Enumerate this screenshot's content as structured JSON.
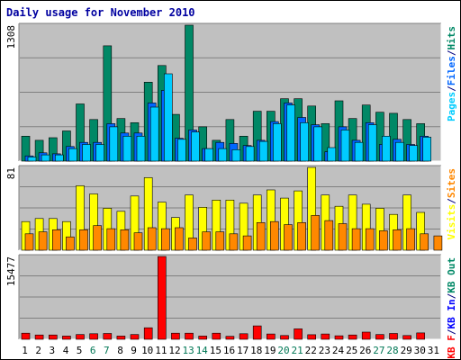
{
  "chart_data": {
    "title": "Daily usage for November 2010",
    "type": "bar",
    "categories": [
      "1",
      "2",
      "3",
      "4",
      "5",
      "6",
      "7",
      "8",
      "9",
      "10",
      "11",
      "12",
      "13",
      "14",
      "15",
      "16",
      "17",
      "18",
      "19",
      "20",
      "21",
      "22",
      "23",
      "24",
      "25",
      "26",
      "27",
      "28",
      "29",
      "30",
      "31"
    ],
    "weekend_days": [
      "6",
      "7",
      "13",
      "14",
      "20",
      "21",
      "27",
      "28"
    ],
    "panels": [
      {
        "id": "hits",
        "y_max_label": "1308",
        "ylim": [
          0,
          1308
        ],
        "legend": [
          {
            "text": "Pages",
            "color": "#00ccff"
          },
          {
            "text": "/",
            "color": "#000080"
          },
          {
            "text": "Files",
            "color": "#0066ff"
          },
          {
            "text": "/",
            "color": "#000080"
          },
          {
            "text": "Hits",
            "color": "#008866"
          }
        ],
        "series": [
          {
            "name": "Hits",
            "color": "#008866",
            "values": [
              240,
              200,
              225,
              290,
              550,
              400,
              1110,
              410,
              370,
              760,
              920,
              450,
              1308,
              330,
              200,
              400,
              240,
              480,
              480,
              600,
              600,
              530,
              360,
              580,
              410,
              540,
              470,
              460,
              400,
              360,
              0
            ]
          },
          {
            "name": "Files",
            "color": "#0066ff",
            "values": [
              50,
              80,
              70,
              140,
              180,
              180,
              360,
              270,
              270,
              560,
              680,
              220,
              300,
              120,
              180,
              170,
              150,
              200,
              380,
              560,
              420,
              350,
              90,
              330,
              200,
              370,
              160,
              210,
              160,
              240,
              0
            ]
          },
          {
            "name": "Pages",
            "color": "#00ccff",
            "values": [
              40,
              60,
              60,
              120,
              160,
              160,
              330,
              240,
              240,
              520,
              840,
              210,
              280,
              120,
              120,
              110,
              140,
              190,
              360,
              540,
              370,
              330,
              130,
              300,
              180,
              350,
              240,
              180,
              150,
              230,
              0
            ]
          }
        ]
      },
      {
        "id": "visits",
        "y_max_label": "81",
        "ylim": [
          0,
          81
        ],
        "legend": [
          {
            "text": "Visits",
            "color": "#ffff00"
          },
          {
            "text": "/",
            "color": "#000080"
          },
          {
            "text": "Sites",
            "color": "#ff8800"
          }
        ],
        "series": [
          {
            "name": "Visits",
            "color": "#ffff00",
            "values": [
              28,
              31,
              31,
              28,
              63,
              55,
              41,
              38,
              53,
              71,
              47,
              32,
              54,
              42,
              49,
              49,
              46,
              54,
              59,
              51,
              58,
              81,
              54,
              43,
              54,
              45,
              41,
              35,
              54,
              37,
              0
            ]
          },
          {
            "name": "Sites",
            "color": "#ff8800",
            "values": [
              16,
              18,
              20,
              13,
              20,
              24,
              21,
              20,
              17,
              22,
              21,
              22,
              12,
              18,
              18,
              16,
              14,
              27,
              28,
              25,
              27,
              34,
              29,
              26,
              21,
              21,
              19,
              20,
              21,
              16,
              14
            ]
          }
        ]
      },
      {
        "id": "kbytes",
        "y_max_label": "15477",
        "ylim": [
          0,
          15477
        ],
        "legend": [
          {
            "text": "KB F",
            "color": "#ff0000"
          },
          {
            "text": "/",
            "color": "#000080"
          },
          {
            "text": "KB In",
            "color": "#0000ff"
          },
          {
            "text": "/",
            "color": "#000080"
          },
          {
            "text": "KB Out",
            "color": "#008866"
          }
        ],
        "series": [
          {
            "name": "KB F",
            "color": "#ff0000",
            "values": [
              1150,
              800,
              800,
              600,
              900,
              1050,
              1100,
              600,
              900,
              2150,
              15477,
              1150,
              1150,
              600,
              1150,
              550,
              1050,
              2500,
              1000,
              700,
              1950,
              850,
              1000,
              650,
              800,
              1350,
              900,
              1100,
              700,
              1200,
              0
            ]
          }
        ]
      }
    ]
  }
}
